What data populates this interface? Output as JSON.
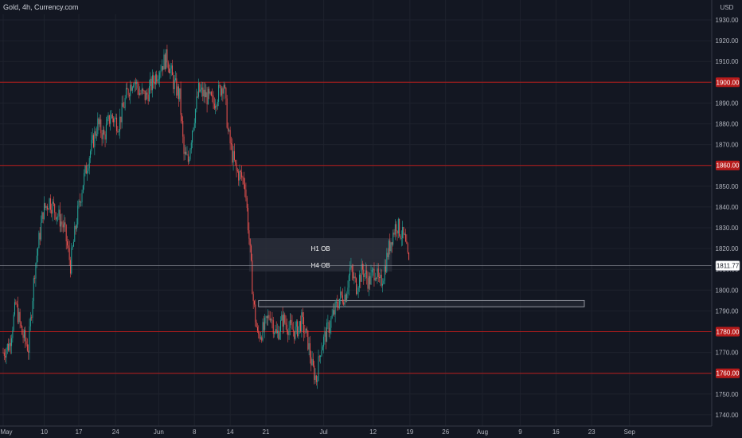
{
  "header": {
    "title": "Gold, 4h, Currency.com",
    "currency": "USD"
  },
  "colors": {
    "background": "#131722",
    "grid": "#1e222d",
    "up": "#26a69a",
    "down": "#ef5350",
    "level_line": "#b71c1c",
    "level_badge": "#b71c1c",
    "box_fill": "#2a2e39",
    "box_stroke": "#787b86",
    "current_price_line": "#9598a1"
  },
  "chart_data": {
    "type": "candlestick",
    "title": "Gold, 4h, Currency.com",
    "ylim": [
      1736,
      1934
    ],
    "y_ticks": [
      1740,
      1750,
      1760,
      1770,
      1780,
      1790,
      1800,
      1810,
      1820,
      1830,
      1840,
      1850,
      1860,
      1870,
      1880,
      1890,
      1900,
      1910,
      1920,
      1930
    ],
    "x_labels": [
      "May",
      "10",
      "17",
      "24",
      "Jun",
      "8",
      "14",
      "21",
      "Jul",
      "12",
      "19",
      "26",
      "Aug",
      "9",
      "16",
      "23",
      "Sep"
    ],
    "x_label_bars": [
      0,
      39,
      72,
      107,
      148,
      182,
      216,
      250,
      305,
      352,
      387,
      421,
      456,
      492,
      526,
      560,
      596
    ],
    "current_price": "1811.77",
    "levels": [
      {
        "price": 1900,
        "label": "1900.00"
      },
      {
        "price": 1860,
        "label": "1860.00"
      },
      {
        "price": 1780,
        "label": "1780.00"
      },
      {
        "price": 1760,
        "label": "1760.00"
      }
    ],
    "zones": [
      {
        "label": "H1 OB",
        "price_top": 1825,
        "price_bottom": 1815,
        "start_bar": 234,
        "end_bar": 370
      },
      {
        "label": "H4 OB",
        "price_top": 1815,
        "price_bottom": 1809,
        "start_bar": 234,
        "end_bar": 370
      },
      {
        "label": "",
        "price_top": 1795,
        "price_bottom": 1792,
        "start_bar": 243,
        "end_bar": 553
      }
    ],
    "anchors": [
      [
        0,
        1770
      ],
      [
        6,
        1774
      ],
      [
        12,
        1793
      ],
      [
        18,
        1779
      ],
      [
        24,
        1772
      ],
      [
        30,
        1810
      ],
      [
        38,
        1838
      ],
      [
        44,
        1843
      ],
      [
        52,
        1836
      ],
      [
        58,
        1830
      ],
      [
        64,
        1812
      ],
      [
        70,
        1834
      ],
      [
        76,
        1852
      ],
      [
        82,
        1865
      ],
      [
        90,
        1880
      ],
      [
        96,
        1874
      ],
      [
        102,
        1884
      ],
      [
        110,
        1880
      ],
      [
        118,
        1895
      ],
      [
        124,
        1902
      ],
      [
        130,
        1895
      ],
      [
        136,
        1893
      ],
      [
        144,
        1902
      ],
      [
        150,
        1908
      ],
      [
        156,
        1912
      ],
      [
        162,
        1900
      ],
      [
        168,
        1893
      ],
      [
        172,
        1865
      ],
      [
        176,
        1862
      ],
      [
        180,
        1878
      ],
      [
        186,
        1896
      ],
      [
        194,
        1893
      ],
      [
        200,
        1890
      ],
      [
        206,
        1896
      ],
      [
        210,
        1900
      ],
      [
        214,
        1876
      ],
      [
        218,
        1865
      ],
      [
        222,
        1857
      ],
      [
        226,
        1855
      ],
      [
        230,
        1852
      ],
      [
        234,
        1825
      ],
      [
        238,
        1795
      ],
      [
        242,
        1778
      ],
      [
        248,
        1781
      ],
      [
        254,
        1789
      ],
      [
        260,
        1778
      ],
      [
        266,
        1786
      ],
      [
        272,
        1782
      ],
      [
        278,
        1780
      ],
      [
        284,
        1785
      ],
      [
        290,
        1775
      ],
      [
        294,
        1763
      ],
      [
        298,
        1757
      ],
      [
        302,
        1772
      ],
      [
        308,
        1780
      ],
      [
        314,
        1788
      ],
      [
        320,
        1796
      ],
      [
        326,
        1798
      ],
      [
        330,
        1810
      ],
      [
        336,
        1802
      ],
      [
        342,
        1810
      ],
      [
        348,
        1804
      ],
      [
        354,
        1810
      ],
      [
        358,
        1802
      ],
      [
        362,
        1808
      ],
      [
        366,
        1818
      ],
      [
        370,
        1826
      ],
      [
        374,
        1832
      ],
      [
        378,
        1828
      ],
      [
        382,
        1824
      ],
      [
        386,
        1812
      ]
    ]
  }
}
